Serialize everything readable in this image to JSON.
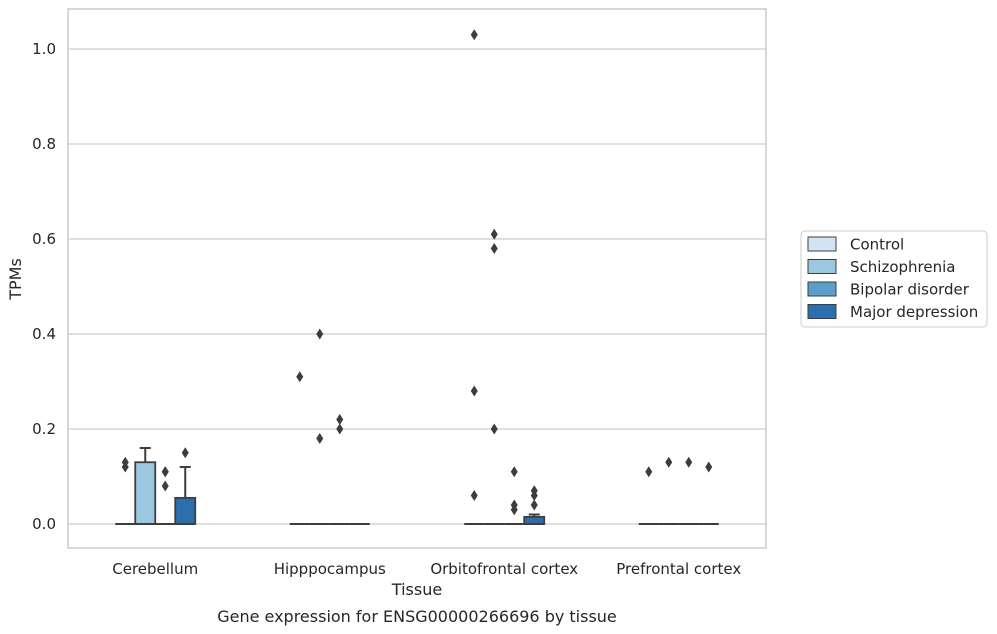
{
  "chart_data": {
    "type": "box",
    "title": "",
    "caption": "Gene expression for ENSG00000266696 by tissue",
    "xlabel": "Tissue",
    "ylabel": "TPMs",
    "ylim": [
      -0.05,
      1.08
    ],
    "yticks": [
      0.0,
      0.2,
      0.4,
      0.6,
      0.8,
      1.0
    ],
    "ytick_labels": [
      "0.0",
      "0.2",
      "0.4",
      "0.6",
      "0.8",
      "1.0"
    ],
    "grid": "horizontal",
    "legend_position": "right",
    "categories": [
      "Cerebellum",
      "Hipppocampus",
      "Orbitofrontal cortex",
      "Prefrontal cortex"
    ],
    "series": [
      {
        "name": "Control",
        "color": "#d2e3f3",
        "boxes": [
          {
            "q1": 0,
            "median": 0,
            "q3": 0,
            "whisker_low": 0,
            "whisker_high": 0,
            "outliers": [
              0.12,
              0.13
            ]
          },
          {
            "q1": 0,
            "median": 0,
            "q3": 0,
            "whisker_low": 0,
            "whisker_high": 0,
            "outliers": [
              0.31
            ]
          },
          {
            "q1": 0,
            "median": 0,
            "q3": 0,
            "whisker_low": 0,
            "whisker_high": 0,
            "outliers": [
              0.06,
              0.28,
              1.03
            ]
          },
          {
            "q1": 0,
            "median": 0,
            "q3": 0,
            "whisker_low": 0,
            "whisker_high": 0,
            "outliers": [
              0.11
            ]
          }
        ]
      },
      {
        "name": "Schizophrenia",
        "color": "#9ac8e0",
        "boxes": [
          {
            "q1": 0,
            "median": 0,
            "q3": 0.13,
            "whisker_low": 0,
            "whisker_high": 0.16,
            "outliers": []
          },
          {
            "q1": 0,
            "median": 0,
            "q3": 0,
            "whisker_low": 0,
            "whisker_high": 0,
            "outliers": [
              0.18,
              0.4
            ]
          },
          {
            "q1": 0,
            "median": 0,
            "q3": 0,
            "whisker_low": 0,
            "whisker_high": 0,
            "outliers": [
              0.2,
              0.58,
              0.61
            ]
          },
          {
            "q1": 0,
            "median": 0,
            "q3": 0,
            "whisker_low": 0,
            "whisker_high": 0,
            "outliers": [
              0.13
            ]
          }
        ]
      },
      {
        "name": "Bipolar disorder",
        "color": "#5a9ec9",
        "boxes": [
          {
            "q1": 0,
            "median": 0,
            "q3": 0,
            "whisker_low": 0,
            "whisker_high": 0,
            "outliers": [
              0.08,
              0.11,
              0.11
            ]
          },
          {
            "q1": 0,
            "median": 0,
            "q3": 0,
            "whisker_low": 0,
            "whisker_high": 0,
            "outliers": [
              0.2,
              0.22
            ]
          },
          {
            "q1": 0,
            "median": 0,
            "q3": 0,
            "whisker_low": 0,
            "whisker_high": 0,
            "outliers": [
              0.03,
              0.04,
              0.11
            ]
          },
          {
            "q1": 0,
            "median": 0,
            "q3": 0,
            "whisker_low": 0,
            "whisker_high": 0,
            "outliers": [
              0.13
            ]
          }
        ]
      },
      {
        "name": "Major depression",
        "color": "#2d6eac",
        "boxes": [
          {
            "q1": 0,
            "median": 0,
            "q3": 0.055,
            "whisker_low": 0,
            "whisker_high": 0.12,
            "outliers": [
              0.15
            ]
          },
          {
            "q1": 0,
            "median": 0,
            "q3": 0,
            "whisker_low": 0,
            "whisker_high": 0,
            "outliers": []
          },
          {
            "q1": 0,
            "median": 0,
            "q3": 0.015,
            "whisker_low": 0,
            "whisker_high": 0.02,
            "outliers": [
              0.04,
              0.06,
              0.07
            ]
          },
          {
            "q1": 0,
            "median": 0,
            "q3": 0,
            "whisker_low": 0,
            "whisker_high": 0,
            "outliers": [
              0.12
            ]
          }
        ]
      }
    ]
  }
}
